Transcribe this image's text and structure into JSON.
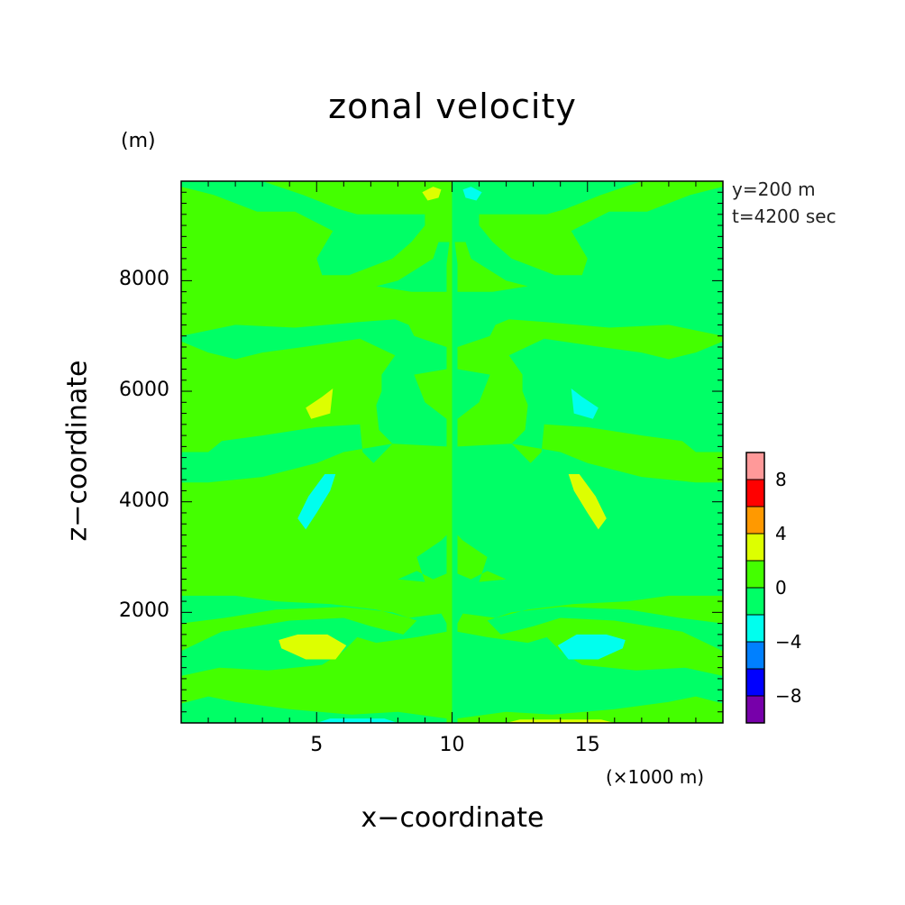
{
  "chart_data": {
    "type": "heatmap",
    "title": "zonal velocity",
    "xlabel": "x−coordinate",
    "ylabel": "z−coordinate",
    "x_unit": "(×1000 m)",
    "y_unit": "(m)",
    "annotations": [
      "y=200 m",
      "t=4200 sec"
    ],
    "xlim": [
      0,
      20
    ],
    "ylim": [
      0,
      9800
    ],
    "x_ticks": [
      "5",
      "10",
      "15"
    ],
    "x_tick_values": [
      5,
      10,
      15
    ],
    "y_ticks": [
      "2000",
      "4000",
      "6000",
      "8000"
    ],
    "y_tick_values": [
      2000,
      4000,
      6000,
      8000
    ],
    "colorbar": {
      "levels": [
        -10,
        -8,
        -6,
        -4,
        -2,
        0,
        2,
        4,
        6,
        8,
        10
      ],
      "colors": [
        "#7700aa",
        "#0000ff",
        "#0080ff",
        "#00ffee",
        "#00ff66",
        "#44ff00",
        "#ddff00",
        "#ff9900",
        "#ff0000",
        "#ff9999"
      ],
      "tick_labels": [
        "−8",
        "−4",
        "0",
        "4",
        "8"
      ],
      "tick_values": [
        -8,
        -4,
        0,
        4,
        8
      ]
    },
    "background_value": 1,
    "regions": [
      {
        "value": -1,
        "points": [
          [
            10,
            0
          ],
          [
            20,
            0
          ],
          [
            20,
            9800
          ],
          [
            10,
            9800
          ]
        ]
      },
      {
        "value": 1,
        "points": [
          [
            0,
            0
          ],
          [
            10,
            0
          ],
          [
            10,
            9800
          ],
          [
            0,
            9800
          ]
        ]
      },
      {
        "value": -1,
        "points": [
          [
            0,
            9800
          ],
          [
            3,
            9800
          ],
          [
            4.5,
            9550
          ],
          [
            5.8,
            9300
          ],
          [
            6.5,
            9200
          ],
          [
            9,
            9200
          ],
          [
            9,
            9000
          ],
          [
            8.5,
            8700
          ],
          [
            7.8,
            8400
          ],
          [
            6.2,
            8100
          ],
          [
            5.2,
            8100
          ],
          [
            5,
            8400
          ],
          [
            5.6,
            8900
          ],
          [
            4.2,
            9250
          ],
          [
            2.8,
            9250
          ],
          [
            1.2,
            9550
          ],
          [
            0,
            9700
          ]
        ]
      },
      {
        "value": -1,
        "points": [
          [
            9.5,
            8700
          ],
          [
            9.3,
            8400
          ],
          [
            8,
            8000
          ],
          [
            7.2,
            7900
          ],
          [
            8.5,
            7800
          ],
          [
            9.8,
            7800
          ],
          [
            9.8,
            8300
          ],
          [
            9.9,
            8700
          ]
        ]
      },
      {
        "value": -1,
        "points": [
          [
            0,
            7000
          ],
          [
            2,
            7200
          ],
          [
            4.2,
            7150
          ],
          [
            6.5,
            7250
          ],
          [
            7.9,
            7300
          ],
          [
            8.4,
            7200
          ],
          [
            8.6,
            7000
          ],
          [
            9.8,
            6800
          ],
          [
            9.8,
            6400
          ],
          [
            8.6,
            6300
          ],
          [
            9,
            5800
          ],
          [
            9.8,
            5500
          ],
          [
            9.8,
            5000
          ],
          [
            7.8,
            5050
          ],
          [
            6,
            4900
          ],
          [
            5,
            4700
          ],
          [
            3,
            4450
          ],
          [
            1,
            4350
          ],
          [
            0,
            4350
          ],
          [
            0,
            4900
          ],
          [
            1,
            4900
          ],
          [
            1.5,
            5100
          ],
          [
            3,
            5200
          ],
          [
            5,
            5350
          ],
          [
            6.6,
            5400
          ],
          [
            6.7,
            4900
          ],
          [
            7.1,
            4700
          ],
          [
            7.8,
            5050
          ],
          [
            7.3,
            5300
          ],
          [
            7.2,
            5750
          ],
          [
            7.4,
            6000
          ],
          [
            7.4,
            6300
          ],
          [
            7.9,
            6650
          ],
          [
            6.6,
            6950
          ],
          [
            4.5,
            6800
          ],
          [
            3,
            6700
          ],
          [
            2,
            6580
          ],
          [
            1,
            6700
          ],
          [
            0,
            6900
          ]
        ]
      },
      {
        "value": -1,
        "points": [
          [
            8.7,
            3000
          ],
          [
            9.6,
            3300
          ],
          [
            9.8,
            3400
          ],
          [
            9.8,
            2700
          ],
          [
            9.3,
            2600
          ],
          [
            8.7,
            2750
          ],
          [
            8,
            2600
          ],
          [
            9,
            2550
          ]
        ]
      },
      {
        "value": -1,
        "points": [
          [
            0,
            2300
          ],
          [
            2,
            2300
          ],
          [
            3.5,
            2200
          ],
          [
            5.5,
            2150
          ],
          [
            7.2,
            2050
          ],
          [
            8.4,
            1900
          ],
          [
            9.6,
            1980
          ],
          [
            9.8,
            1800
          ],
          [
            9.8,
            1650
          ],
          [
            8.7,
            1550
          ],
          [
            7.2,
            1450
          ],
          [
            6.5,
            1550
          ],
          [
            6,
            1300
          ],
          [
            5.2,
            1050
          ],
          [
            3.2,
            950
          ],
          [
            1.4,
            1000
          ],
          [
            0,
            850
          ],
          [
            0,
            1300
          ],
          [
            1.5,
            1650
          ],
          [
            4,
            1850
          ],
          [
            6,
            1900
          ],
          [
            7,
            1750
          ],
          [
            8.2,
            1600
          ],
          [
            8.7,
            1850
          ],
          [
            7.8,
            2000
          ],
          [
            6,
            2100
          ],
          [
            3.5,
            2050
          ],
          [
            1.6,
            1900
          ],
          [
            0,
            1800
          ]
        ]
      },
      {
        "value": -1,
        "points": [
          [
            0,
            350
          ],
          [
            1,
            480
          ],
          [
            2,
            380
          ],
          [
            4,
            250
          ],
          [
            6.3,
            150
          ],
          [
            8,
            200
          ],
          [
            9.8,
            80
          ],
          [
            9.8,
            0
          ],
          [
            0,
            0
          ]
        ]
      },
      {
        "value": 1,
        "points": [
          [
            20,
            9800
          ],
          [
            17,
            9800
          ],
          [
            15.5,
            9550
          ],
          [
            14.2,
            9300
          ],
          [
            13.5,
            9200
          ],
          [
            11,
            9200
          ],
          [
            11,
            9000
          ],
          [
            11.5,
            8700
          ],
          [
            12.2,
            8400
          ],
          [
            13.8,
            8100
          ],
          [
            14.8,
            8100
          ],
          [
            15,
            8400
          ],
          [
            14.4,
            8900
          ],
          [
            15.8,
            9250
          ],
          [
            17.2,
            9250
          ],
          [
            18.8,
            9550
          ],
          [
            20,
            9700
          ]
        ]
      },
      {
        "value": 1,
        "points": [
          [
            10.5,
            8700
          ],
          [
            10.7,
            8400
          ],
          [
            12,
            8000
          ],
          [
            12.8,
            7900
          ],
          [
            11.5,
            7800
          ],
          [
            10.2,
            7800
          ],
          [
            10.2,
            8300
          ],
          [
            10.1,
            8700
          ]
        ]
      },
      {
        "value": 1,
        "points": [
          [
            20,
            7000
          ],
          [
            18,
            7200
          ],
          [
            15.8,
            7150
          ],
          [
            13.5,
            7250
          ],
          [
            12.1,
            7300
          ],
          [
            11.6,
            7200
          ],
          [
            11.4,
            7000
          ],
          [
            10.2,
            6800
          ],
          [
            10.2,
            6400
          ],
          [
            11.4,
            6300
          ],
          [
            11,
            5800
          ],
          [
            10.2,
            5500
          ],
          [
            10.2,
            5000
          ],
          [
            12.2,
            5050
          ],
          [
            14,
            4900
          ],
          [
            15,
            4700
          ],
          [
            17,
            4450
          ],
          [
            19,
            4350
          ],
          [
            20,
            4350
          ],
          [
            20,
            4900
          ],
          [
            19,
            4900
          ],
          [
            18.5,
            5100
          ],
          [
            17,
            5200
          ],
          [
            15,
            5350
          ],
          [
            13.4,
            5400
          ],
          [
            13.3,
            4900
          ],
          [
            12.9,
            4700
          ],
          [
            12.2,
            5050
          ],
          [
            12.7,
            5300
          ],
          [
            12.8,
            5750
          ],
          [
            12.6,
            6000
          ],
          [
            12.6,
            6300
          ],
          [
            12.1,
            6650
          ],
          [
            13.4,
            6950
          ],
          [
            15.5,
            6800
          ],
          [
            17,
            6700
          ],
          [
            18,
            6580
          ],
          [
            19,
            6700
          ],
          [
            20,
            6900
          ]
        ]
      },
      {
        "value": 1,
        "points": [
          [
            11.3,
            3000
          ],
          [
            10.4,
            3300
          ],
          [
            10.2,
            3400
          ],
          [
            10.2,
            2700
          ],
          [
            10.7,
            2600
          ],
          [
            11.3,
            2750
          ],
          [
            12,
            2600
          ],
          [
            11,
            2550
          ]
        ]
      },
      {
        "value": 1,
        "points": [
          [
            20,
            2300
          ],
          [
            18,
            2300
          ],
          [
            16.5,
            2200
          ],
          [
            14.5,
            2150
          ],
          [
            12.8,
            2050
          ],
          [
            11.6,
            1900
          ],
          [
            10.4,
            1980
          ],
          [
            10.2,
            1800
          ],
          [
            10.2,
            1650
          ],
          [
            11.3,
            1550
          ],
          [
            12.8,
            1450
          ],
          [
            13.5,
            1550
          ],
          [
            14,
            1300
          ],
          [
            14.8,
            1050
          ],
          [
            16.8,
            950
          ],
          [
            18.6,
            1000
          ],
          [
            20,
            850
          ],
          [
            20,
            1300
          ],
          [
            18.5,
            1650
          ],
          [
            16,
            1850
          ],
          [
            14,
            1900
          ],
          [
            13,
            1750
          ],
          [
            11.8,
            1600
          ],
          [
            11.3,
            1850
          ],
          [
            12.2,
            2000
          ],
          [
            14,
            2100
          ],
          [
            16.5,
            2050
          ],
          [
            18.4,
            1900
          ],
          [
            20,
            1800
          ]
        ]
      },
      {
        "value": 1,
        "points": [
          [
            20,
            350
          ],
          [
            19,
            480
          ],
          [
            18,
            380
          ],
          [
            16,
            250
          ],
          [
            13.7,
            150
          ],
          [
            12,
            200
          ],
          [
            10.2,
            80
          ],
          [
            10.2,
            0
          ],
          [
            20,
            0
          ]
        ]
      },
      {
        "value": 3,
        "points": [
          [
            8.9,
            9600
          ],
          [
            9.3,
            9700
          ],
          [
            9.6,
            9650
          ],
          [
            9.5,
            9500
          ],
          [
            9.1,
            9450
          ]
        ]
      },
      {
        "value": -3,
        "points": [
          [
            11.1,
            9600
          ],
          [
            10.7,
            9700
          ],
          [
            10.4,
            9650
          ],
          [
            10.5,
            9500
          ],
          [
            10.9,
            9450
          ]
        ]
      },
      {
        "value": 3,
        "points": [
          [
            4.6,
            5700
          ],
          [
            5.2,
            5900
          ],
          [
            5.6,
            6050
          ],
          [
            5.5,
            5600
          ],
          [
            4.8,
            5500
          ]
        ]
      },
      {
        "value": -3,
        "points": [
          [
            15.4,
            5700
          ],
          [
            14.8,
            5900
          ],
          [
            14.4,
            6050
          ],
          [
            14.5,
            5600
          ],
          [
            15.2,
            5500
          ]
        ]
      },
      {
        "value": -3,
        "points": [
          [
            4.6,
            3500
          ],
          [
            5,
            3800
          ],
          [
            5.5,
            4200
          ],
          [
            5.7,
            4500
          ],
          [
            5.3,
            4500
          ],
          [
            4.7,
            4100
          ],
          [
            4.3,
            3700
          ]
        ]
      },
      {
        "value": 3,
        "points": [
          [
            15.4,
            3500
          ],
          [
            15,
            3800
          ],
          [
            14.5,
            4200
          ],
          [
            14.3,
            4500
          ],
          [
            14.7,
            4500
          ],
          [
            15.3,
            4100
          ],
          [
            15.7,
            3700
          ]
        ]
      },
      {
        "value": 3,
        "points": [
          [
            3.6,
            1500
          ],
          [
            4.3,
            1600
          ],
          [
            5.4,
            1600
          ],
          [
            6.1,
            1400
          ],
          [
            5.7,
            1150
          ],
          [
            4.6,
            1150
          ],
          [
            3.7,
            1350
          ]
        ]
      },
      {
        "value": -3,
        "points": [
          [
            16.4,
            1500
          ],
          [
            15.7,
            1600
          ],
          [
            14.6,
            1600
          ],
          [
            13.9,
            1400
          ],
          [
            14.3,
            1150
          ],
          [
            15.4,
            1150
          ],
          [
            16.3,
            1350
          ]
        ]
      },
      {
        "value": -3,
        "points": [
          [
            5,
            0
          ],
          [
            8,
            0
          ],
          [
            7.5,
            80
          ],
          [
            5.5,
            80
          ]
        ]
      },
      {
        "value": 3,
        "points": [
          [
            12,
            0
          ],
          [
            16,
            0
          ],
          [
            15.5,
            60
          ],
          [
            12.5,
            60
          ]
        ]
      }
    ]
  },
  "colors": {
    "frame": "#000000",
    "background": "#ffffff"
  }
}
